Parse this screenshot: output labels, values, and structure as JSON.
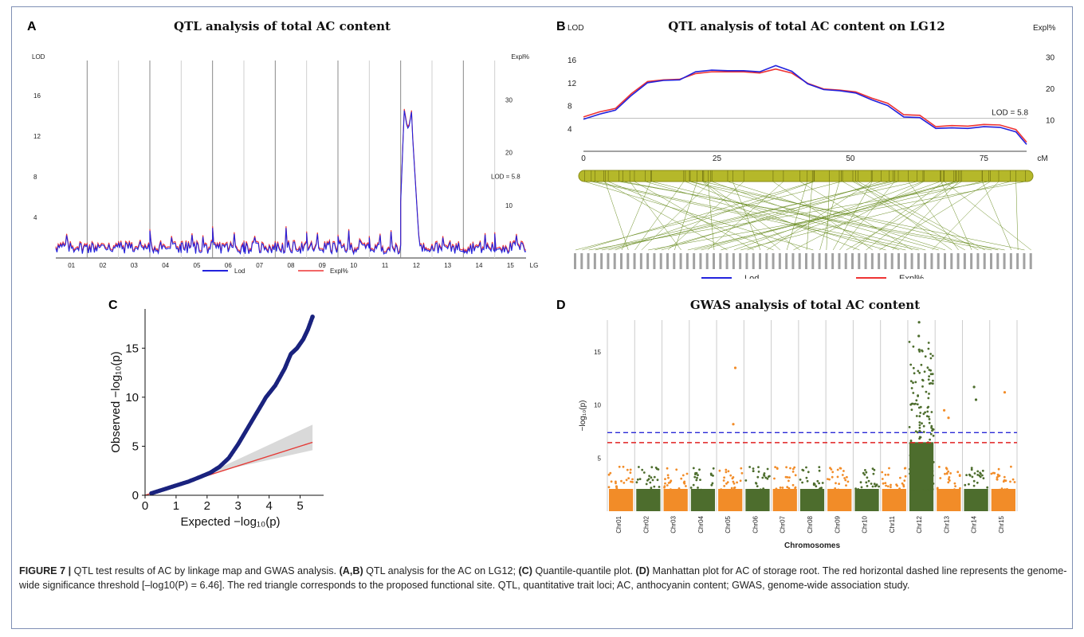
{
  "colors": {
    "lod": "#2222dd",
    "expl": "#ee3333",
    "chr_dark": "#4d6d2d",
    "chr_orange": "#f28c28",
    "qq_points": "#1a237e",
    "qq_line": "#e53935",
    "threshold_blue": "#2a2ad6",
    "threshold_red": "#e12121",
    "map_green": "#6b8e23",
    "chrom_bar": "#b5b82a"
  },
  "caption": {
    "figure_label": "FIGURE 7 |",
    "intro": "QTL test results of AC by linkage map and GWAS analysis.",
    "ab_label": "(A,B)",
    "ab_text": "QTL analysis for the AC on LG12;",
    "c_label": "(C)",
    "c_text": "Quantile-quantile plot.",
    "d_label": "(D)",
    "d_text": "Manhattan plot for AC of storage root. The red horizontal dashed line represents the genome-wide significance threshold [–log10(P) = 6.46]. The red triangle corresponds to the proposed functional site. QTL, quantitative trait loci; AC, anthocyanin content; GWAS, genome-wide association study."
  },
  "panels": {
    "A": {
      "letter": "A",
      "title": "QTL analysis of total AC content"
    },
    "B": {
      "letter": "B",
      "title": "QTL analysis of total AC content on LG12"
    },
    "C": {
      "letter": "C"
    },
    "D": {
      "letter": "D",
      "title": "GWAS analysis of total AC content"
    }
  },
  "chart_data": [
    {
      "panel": "A",
      "type": "line",
      "title": "QTL analysis of total AC content",
      "ylabel": "LOD",
      "y2label": "Expl%",
      "yticks": [
        "4",
        "8",
        "12",
        "16"
      ],
      "y2ticks": [
        "10",
        "20",
        "30"
      ],
      "ylim": [
        0,
        19
      ],
      "xticks": [
        "01",
        "02",
        "03",
        "04",
        "05",
        "06",
        "07",
        "08",
        "09",
        "10",
        "11",
        "12",
        "13",
        "14",
        "15",
        "LG"
      ],
      "threshold_label": "LOD = 5.8",
      "threshold": 5.8,
      "legend": [
        "Lod",
        "Expl%"
      ],
      "peak": {
        "linkage_group": "12",
        "lod": 14.8
      }
    },
    {
      "panel": "B",
      "type": "line",
      "title": "QTL analysis of total AC content on LG12",
      "ylabel": "LOD",
      "y2label": "Expl%",
      "yticks": [
        "4",
        "8",
        "12",
        "16"
      ],
      "y2ticks": [
        "10",
        "20",
        "30"
      ],
      "xticks": [
        "0",
        "25",
        "50",
        "75",
        "cM"
      ],
      "threshold_label": "LOD = 5.8",
      "threshold": 5.8,
      "legend": [
        "Lod",
        "Expl%"
      ],
      "series": [
        {
          "name": "Lod",
          "x": [
            0,
            3,
            6,
            9,
            12,
            15,
            18,
            21,
            24,
            27,
            30,
            33,
            36,
            39,
            42,
            45,
            48,
            51,
            54,
            57,
            60,
            63,
            66,
            69,
            72,
            75,
            78,
            81,
            83
          ],
          "values": [
            5.6,
            6.5,
            7.2,
            9.8,
            12.0,
            12.4,
            12.5,
            13.9,
            14.2,
            14.1,
            14.1,
            13.9,
            15.0,
            14.0,
            11.8,
            10.8,
            10.6,
            10.2,
            9.0,
            8.0,
            6.0,
            5.9,
            4.0,
            4.1,
            4.0,
            4.3,
            4.2,
            3.4,
            1.2
          ]
        },
        {
          "name": "Expl%",
          "x": [
            0,
            3,
            6,
            9,
            12,
            15,
            18,
            21,
            24,
            27,
            30,
            33,
            36,
            39,
            42,
            45,
            48,
            51,
            54,
            57,
            60,
            63,
            66,
            69,
            72,
            75,
            78,
            81,
            83
          ],
          "values": [
            6.0,
            6.9,
            7.5,
            10.1,
            12.2,
            12.5,
            12.6,
            13.6,
            13.9,
            13.9,
            13.9,
            13.7,
            14.4,
            13.7,
            11.9,
            10.9,
            10.7,
            10.4,
            9.3,
            8.4,
            6.4,
            6.3,
            4.3,
            4.5,
            4.4,
            4.7,
            4.6,
            3.8,
            1.6
          ]
        }
      ]
    },
    {
      "panel": "C",
      "type": "scatter",
      "xlabel": "Expected −log₁₀(p)",
      "ylabel": "Observed −log₁₀(p)",
      "xticks": [
        "0",
        "1",
        "2",
        "3",
        "4",
        "5"
      ],
      "yticks": [
        "0",
        "5",
        "10",
        "15"
      ],
      "xlim": [
        0,
        5.5
      ],
      "ylim": [
        0,
        19
      ],
      "points": [
        [
          0.2,
          0.2
        ],
        [
          0.6,
          0.6
        ],
        [
          1.0,
          1.0
        ],
        [
          1.4,
          1.4
        ],
        [
          1.8,
          1.9
        ],
        [
          2.1,
          2.3
        ],
        [
          2.4,
          2.9
        ],
        [
          2.7,
          3.8
        ],
        [
          3.0,
          5.2
        ],
        [
          3.3,
          6.8
        ],
        [
          3.6,
          8.4
        ],
        [
          3.9,
          10.0
        ],
        [
          4.2,
          11.2
        ],
        [
          4.5,
          12.9
        ],
        [
          4.7,
          14.4
        ],
        [
          4.9,
          15.0
        ],
        [
          5.1,
          15.9
        ],
        [
          5.25,
          16.9
        ],
        [
          5.4,
          18.2
        ]
      ]
    },
    {
      "panel": "D",
      "type": "scatter",
      "title": "GWAS analysis of total AC content",
      "xlabel": "Chromosomes",
      "ylabel": "−log₁₀(p)",
      "yticks": [
        "5",
        "10",
        "15"
      ],
      "ylim": [
        0,
        18
      ],
      "categories": [
        "Chr01",
        "Chr02",
        "Chr03",
        "Chr04",
        "Chr05",
        "Chr06",
        "Chr07",
        "Chr08",
        "Chr09",
        "Chr10",
        "Chr11",
        "Chr12",
        "Chr13",
        "Chr14",
        "Chr15"
      ],
      "thresholds": [
        7.4,
        6.46
      ],
      "notable_points": [
        {
          "chr": "Chr05",
          "y": 13.5
        },
        {
          "chr": "Chr05",
          "y": 8.2
        },
        {
          "chr": "Chr12",
          "y": 17.8
        },
        {
          "chr": "Chr12",
          "y": 16.5
        },
        {
          "chr": "Chr12",
          "y": 15.2
        },
        {
          "chr": "Chr13",
          "y": 9.5
        },
        {
          "chr": "Chr13",
          "y": 8.8
        },
        {
          "chr": "Chr14",
          "y": 11.7
        },
        {
          "chr": "Chr14",
          "y": 10.5
        },
        {
          "chr": "Chr15",
          "y": 11.2
        }
      ]
    }
  ]
}
